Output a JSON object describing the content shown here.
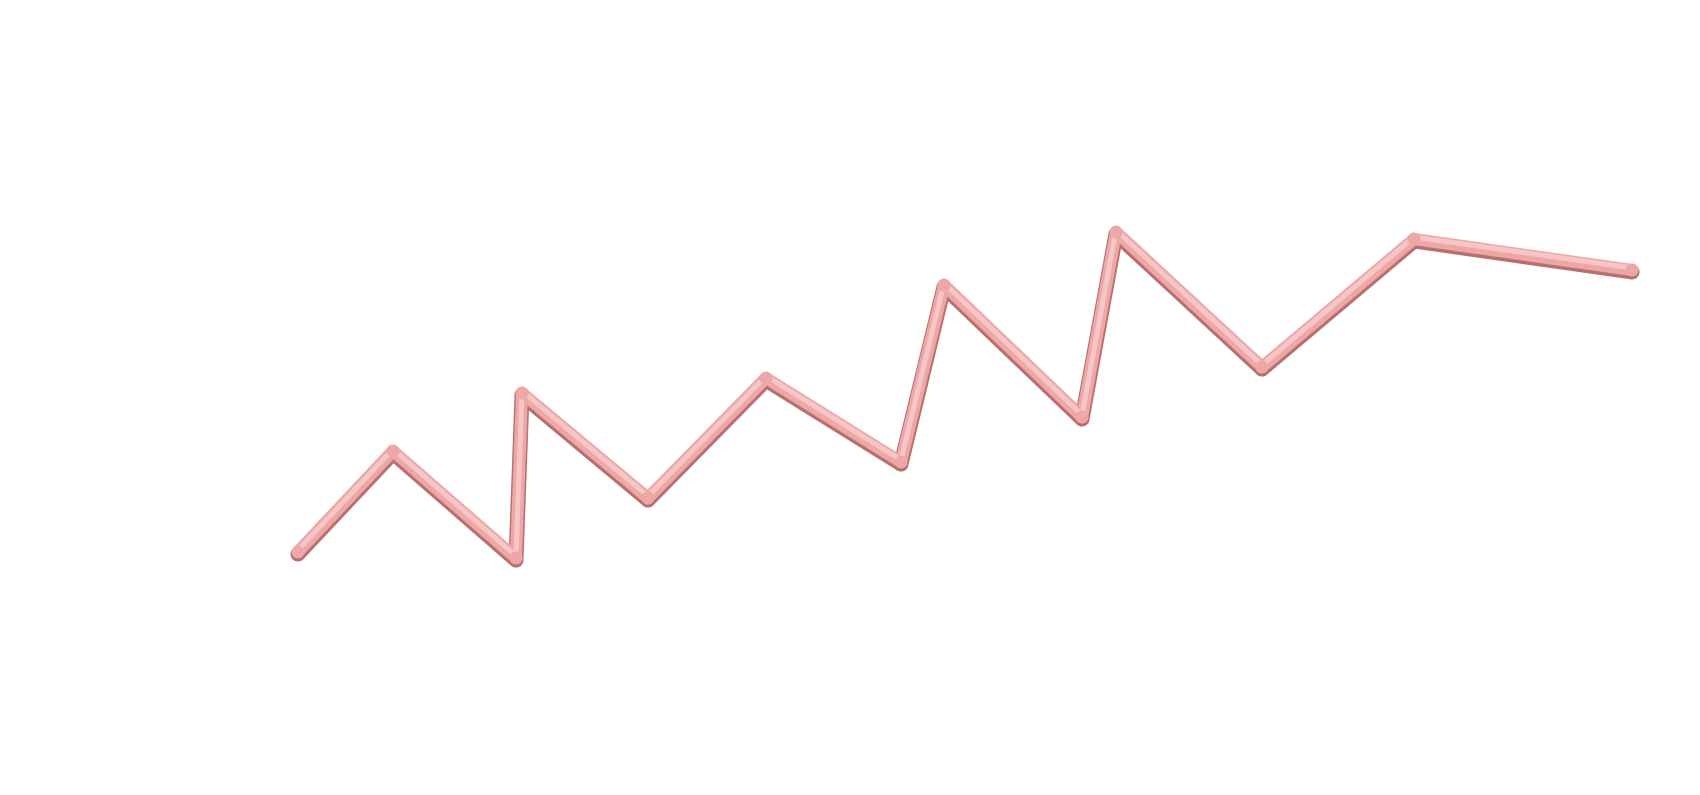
{
  "structure": {
    "style": "backbone tube",
    "color_light": "#f6c6c6",
    "color_mid": "#eea7a7",
    "color_dark": "#b76f6f",
    "node_count": 14
  }
}
